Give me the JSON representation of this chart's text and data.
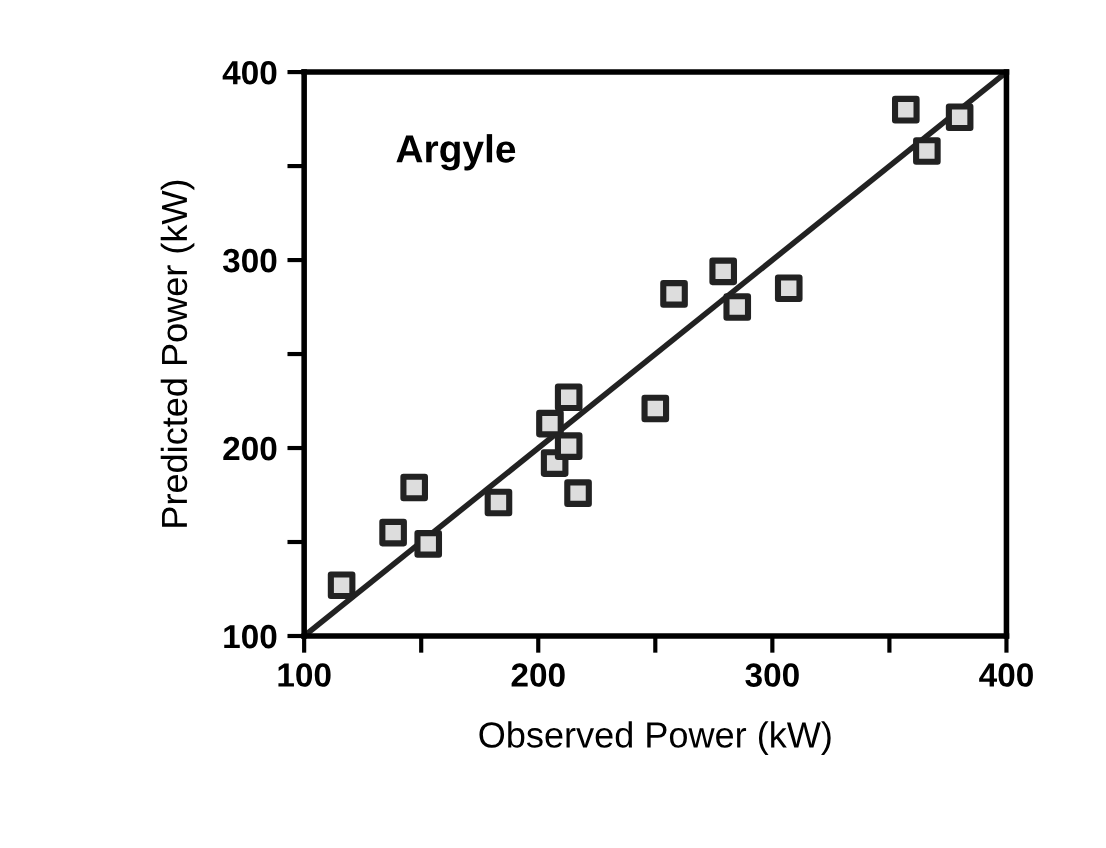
{
  "chart_data": {
    "type": "scatter",
    "xlabel": "Observed Power (kW)",
    "ylabel": "Predicted Power (kW)",
    "annotations": [
      "Argyle"
    ],
    "xlim": [
      100,
      400
    ],
    "ylim": [
      100,
      400
    ],
    "xticks": [
      100,
      {
        "value": 150,
        "label": null
      },
      200,
      {
        "value": 250,
        "label": null
      },
      300,
      {
        "value": 350,
        "label": null
      },
      400
    ],
    "yticks": [
      100,
      {
        "value": 150,
        "label": null
      },
      200,
      {
        "value": 250,
        "label": null
      },
      300,
      {
        "value": 350,
        "label": null
      },
      400
    ],
    "grid": false,
    "series": [
      {
        "marker": "square",
        "color": "#222222",
        "x": [
          116,
          138,
          147,
          153,
          183,
          205,
          207,
          213,
          213,
          217,
          250,
          258,
          279,
          285,
          307,
          357,
          366,
          380
        ],
        "values": [
          127,
          155,
          179,
          149,
          171,
          213,
          192,
          227,
          201,
          176,
          221,
          282,
          294,
          275,
          285,
          380,
          358,
          376
        ]
      },
      {
        "type": "line",
        "marker": "none",
        "color": "#222222",
        "line_style": "solid",
        "x": [
          100,
          400
        ],
        "values": [
          100,
          400
        ]
      }
    ]
  }
}
